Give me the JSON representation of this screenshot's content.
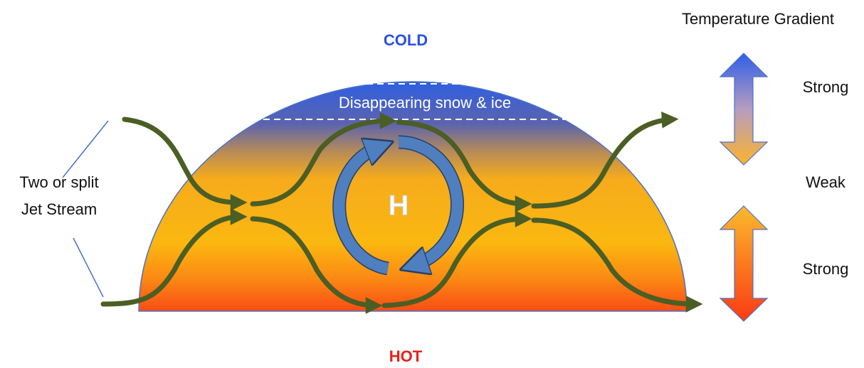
{
  "top_label": "COLD",
  "bottom_label": "HOT",
  "band_label": "Disappearing snow & ice",
  "center_label": "H",
  "jet_stream_label": [
    "Two or split",
    "Jet Stream"
  ],
  "gradient": {
    "title": "Temperature Gradient",
    "levels": [
      "Strong",
      "Weak",
      "Strong"
    ]
  }
}
